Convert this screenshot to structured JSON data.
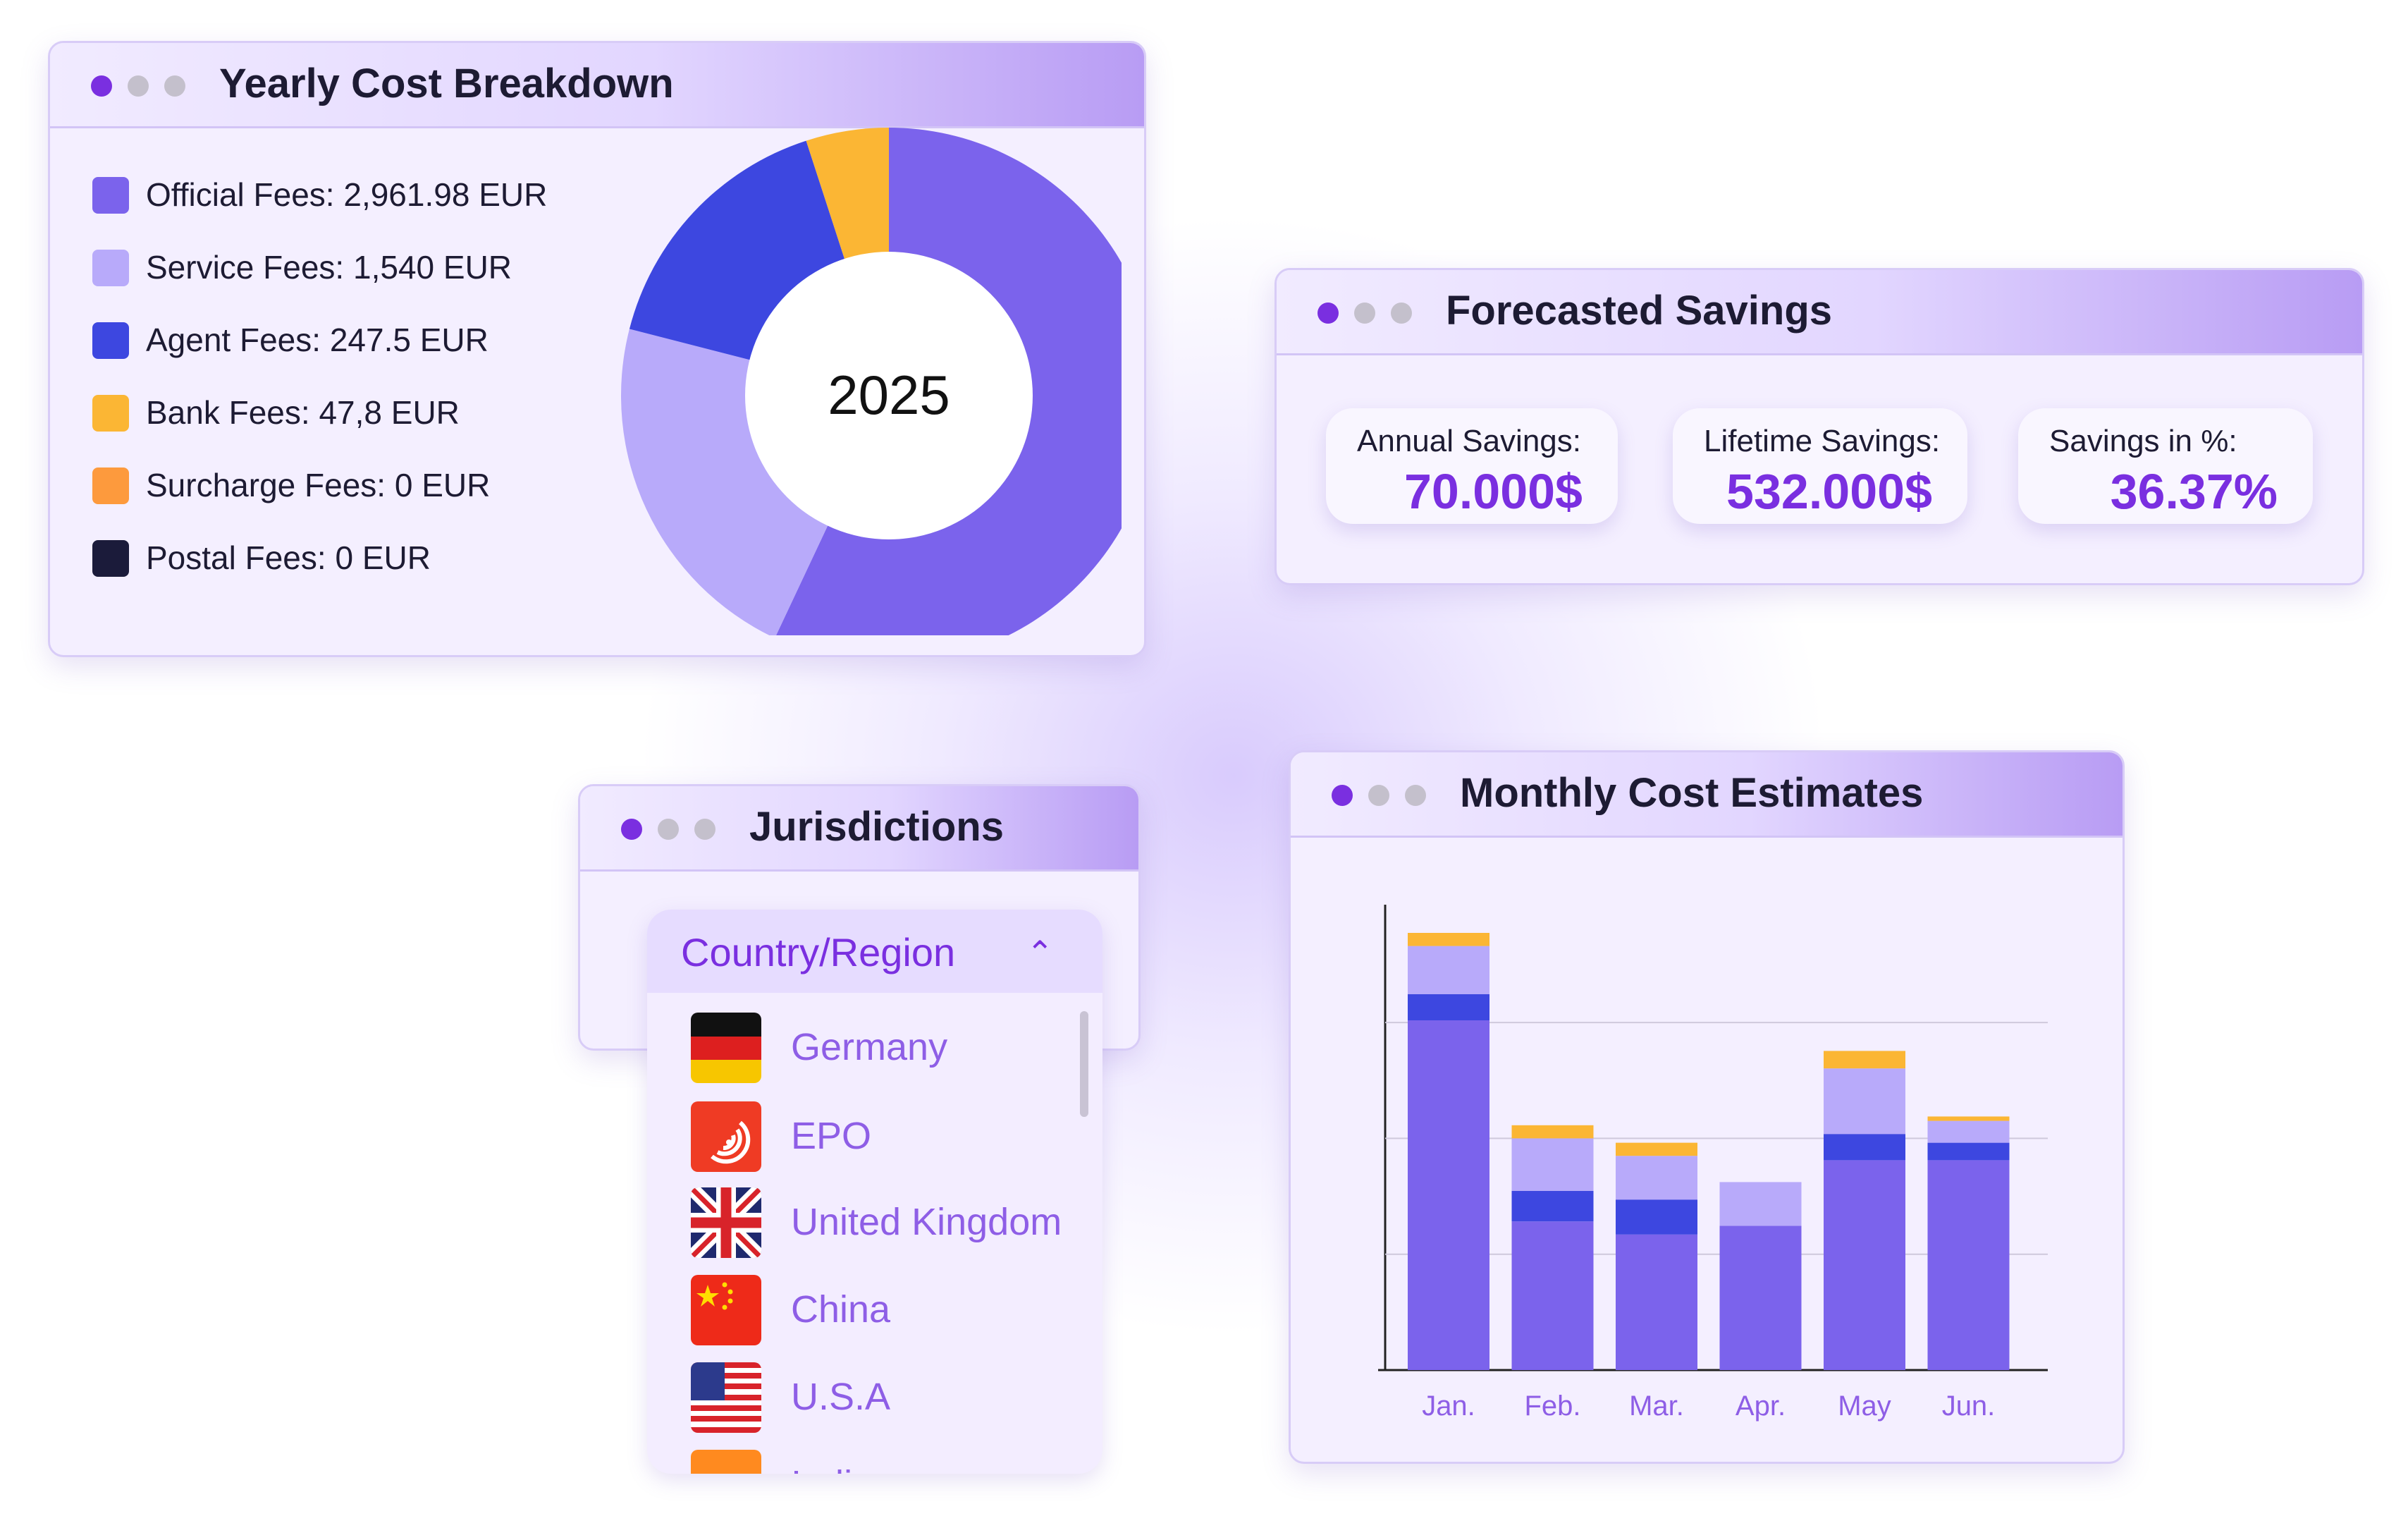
{
  "yearly": {
    "title": "Yearly Cost Breakdown",
    "center_label": "2025",
    "legend": [
      {
        "label": "Official Fees: 2,961.98 EUR",
        "color": "#7b63ec"
      },
      {
        "label": "Service Fees: 1,540 EUR",
        "color": "#b8aafa"
      },
      {
        "label": "Agent Fees: 247.5 EUR",
        "color": "#3d47e0"
      },
      {
        "label": "Bank Fees: 47,8 EUR",
        "color": "#fbb634"
      },
      {
        "label": "Surcharge Fees: 0 EUR",
        "color": "#fd9a3d"
      },
      {
        "label": "Postal Fees: 0 EUR",
        "color": "#1b1b3a"
      }
    ]
  },
  "savings": {
    "title": "Forecasted Savings",
    "cards": [
      {
        "label": "Annual Savings:",
        "value": "70.000$"
      },
      {
        "label": "Lifetime Savings:",
        "value": "532.000$"
      },
      {
        "label": "Savings in %:",
        "value": "36.37%"
      }
    ]
  },
  "jurisdictions": {
    "title": "Jurisdictions",
    "dropdown_label": "Country/Region",
    "chevron": "chevron-up-icon",
    "countries": [
      "Germany",
      "EPO",
      "United Kingdom",
      "China",
      "U.S.A",
      "India"
    ]
  },
  "monthly": {
    "title": "Monthly Cost Estimates"
  },
  "chart_data": [
    {
      "type": "pie",
      "title": "2025",
      "series_order": [
        "Official Fees",
        "Service Fees",
        "Agent Fees",
        "Bank Fees"
      ],
      "slices": [
        {
          "name": "Official Fees",
          "value": 57,
          "color": "#7b63ec"
        },
        {
          "name": "Service Fees",
          "value": 22,
          "color": "#b8aafa"
        },
        {
          "name": "Agent Fees",
          "value": 16,
          "color": "#3d47e0"
        },
        {
          "name": "Bank Fees",
          "value": 5,
          "color": "#fbb634"
        }
      ]
    },
    {
      "type": "bar",
      "title": "Monthly Cost Estimates",
      "stacked": true,
      "categories": [
        "Jan.",
        "Feb.",
        "Mar.",
        "Apr.",
        "May",
        "Jun."
      ],
      "ylim": [
        0,
        100
      ],
      "grid": true,
      "series": [
        {
          "name": "Official Fees",
          "color": "#7b63ec",
          "values": [
            80,
            34,
            31,
            33,
            48,
            48
          ]
        },
        {
          "name": "Agent Fees",
          "color": "#3d47e0",
          "values": [
            6,
            7,
            8,
            0,
            6,
            4
          ]
        },
        {
          "name": "Service Fees",
          "color": "#b8aafa",
          "values": [
            11,
            12,
            10,
            10,
            15,
            5
          ]
        },
        {
          "name": "Bank Fees",
          "color": "#fbb634",
          "values": [
            3,
            3,
            3,
            0,
            4,
            1
          ]
        }
      ]
    }
  ]
}
